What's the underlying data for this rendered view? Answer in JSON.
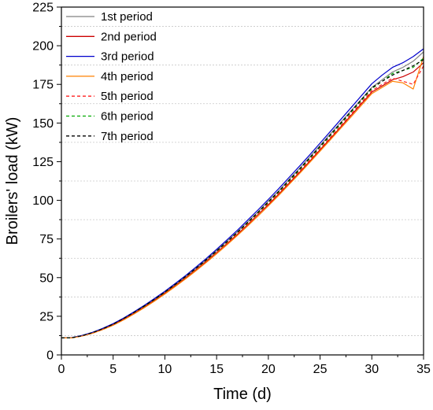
{
  "chart_data": {
    "type": "line",
    "title": "",
    "xlabel": "Time (d)",
    "ylabel": "Broilers' load (kW)",
    "xlim": [
      0,
      35
    ],
    "ylim": [
      0,
      225
    ],
    "x_ticks": [
      0,
      5,
      10,
      15,
      20,
      25,
      30,
      35
    ],
    "y_ticks": [
      0,
      25,
      50,
      75,
      100,
      125,
      150,
      175,
      200,
      225
    ],
    "x_tick_labels": [
      "0",
      "5",
      "10",
      "15",
      "20",
      "25",
      "30",
      "35"
    ],
    "y_tick_labels": [
      "0",
      "25",
      "50",
      "75",
      "100",
      "125",
      "150",
      "175",
      "200",
      "225"
    ],
    "grid": "horizontal dotted at minor y ticks",
    "legend_position": "top-left",
    "x": [
      0,
      1,
      2,
      3,
      4,
      5,
      6,
      7,
      8,
      9,
      10,
      11,
      12,
      13,
      14,
      15,
      16,
      17,
      18,
      19,
      20,
      21,
      22,
      23,
      24,
      25,
      26,
      27,
      28,
      29,
      30,
      31,
      32,
      33,
      34,
      35
    ],
    "series": [
      {
        "name": "1st period",
        "color": "#808080",
        "dash": "solid",
        "values": [
          11,
          11.2,
          12.5,
          14.5,
          17,
          20,
          23.5,
          27.5,
          31.5,
          36,
          40.5,
          45.5,
          50.5,
          56,
          61.5,
          67.5,
          73.5,
          79.5,
          86,
          92.5,
          99.5,
          106,
          113.5,
          120.5,
          128,
          135.5,
          143,
          150.5,
          158,
          165.5,
          173,
          178,
          183,
          186,
          190,
          196
        ]
      },
      {
        "name": "2nd period",
        "color": "#cc0000",
        "dash": "solid",
        "values": [
          11,
          11.1,
          12.3,
          14.2,
          16.6,
          19.5,
          23,
          26.8,
          31,
          35.3,
          40,
          44.8,
          49.8,
          55,
          60.5,
          66.2,
          72,
          78,
          84.2,
          90.8,
          97.2,
          104,
          111,
          118,
          125.3,
          132.7,
          140,
          147.5,
          155,
          162.5,
          170,
          174,
          178,
          180,
          183,
          189
        ]
      },
      {
        "name": "3rd period",
        "color": "#0000cc",
        "dash": "solid",
        "values": [
          11,
          11.2,
          12.6,
          14.6,
          17.2,
          20.2,
          23.8,
          27.8,
          32,
          36.5,
          41.2,
          46.2,
          51.3,
          56.8,
          62.4,
          68.3,
          74.4,
          80.6,
          87.2,
          93.8,
          100.6,
          107.5,
          114.8,
          122,
          129.4,
          137,
          144.6,
          152.3,
          160,
          167.7,
          175.4,
          181,
          186,
          189,
          193,
          198
        ]
      },
      {
        "name": "4th period",
        "color": "#ff8000",
        "dash": "solid",
        "values": [
          11,
          11,
          12.2,
          14,
          16.4,
          19.2,
          22.6,
          26.4,
          30.5,
          34.8,
          39.4,
          44.2,
          49.2,
          54.4,
          59.8,
          65.4,
          71.2,
          77.2,
          83.4,
          89.8,
          96.4,
          103.2,
          110.2,
          117.2,
          124.5,
          131.8,
          139.2,
          146.6,
          154,
          161.5,
          169,
          173,
          177,
          176,
          172,
          193
        ]
      },
      {
        "name": "5th period",
        "color": "#ff2020",
        "dash": "dashed",
        "values": [
          11,
          11.1,
          12.3,
          14.2,
          16.7,
          19.6,
          23.1,
          27,
          31.1,
          35.5,
          40.2,
          45,
          50,
          55.3,
          60.8,
          66.5,
          72.4,
          78.4,
          84.7,
          91.2,
          97.8,
          104.6,
          111.6,
          118.7,
          126,
          133.3,
          140.7,
          148.2,
          155.8,
          163.4,
          171,
          175,
          179,
          177,
          175,
          187
        ]
      },
      {
        "name": "6th period",
        "color": "#00aa00",
        "dash": "dashed",
        "values": [
          11,
          11.1,
          12.4,
          14.4,
          16.9,
          19.8,
          23.4,
          27.3,
          31.4,
          35.8,
          40.5,
          45.4,
          50.5,
          55.8,
          61.3,
          67,
          73,
          79.1,
          85.4,
          91.9,
          98.6,
          105.4,
          112.4,
          119.6,
          127,
          134.4,
          141.9,
          149.4,
          157,
          164.6,
          172.2,
          177,
          182,
          184,
          186,
          192
        ]
      },
      {
        "name": "7th period",
        "color": "#000000",
        "dash": "dashed",
        "values": [
          11,
          11.1,
          12.4,
          14.4,
          16.9,
          19.9,
          23.5,
          27.4,
          31.6,
          36,
          40.7,
          45.6,
          50.7,
          56,
          61.6,
          67.3,
          73.3,
          79.4,
          85.8,
          92.3,
          99,
          105.8,
          112.9,
          120.1,
          127.5,
          134.9,
          142.4,
          150,
          157.6,
          165.2,
          172.8,
          177,
          181,
          184,
          187,
          191
        ]
      }
    ]
  }
}
